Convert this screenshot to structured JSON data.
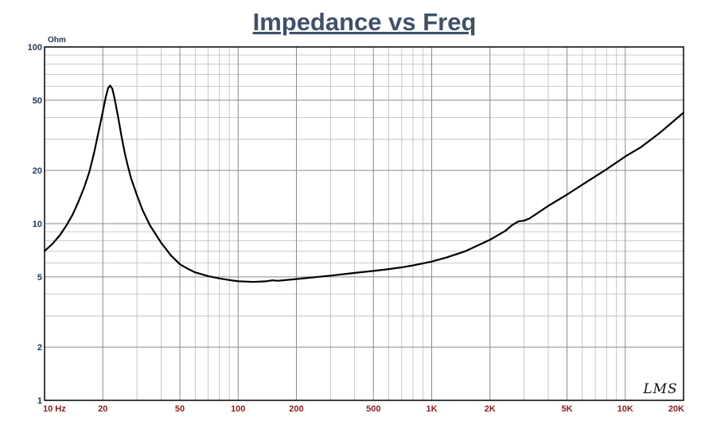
{
  "chart_data": {
    "type": "line",
    "title": "Impedance vs Freq",
    "yunit": "Ohm",
    "xscale": "log",
    "yscale": "log",
    "xlim": [
      10,
      20000
    ],
    "ylim": [
      1,
      100
    ],
    "grid": true,
    "legend": "none",
    "logo": "LMS",
    "xticks": [
      {
        "v": 10,
        "label": "10 Hz"
      },
      {
        "v": 20,
        "label": "20"
      },
      {
        "v": 50,
        "label": "50"
      },
      {
        "v": 100,
        "label": "100"
      },
      {
        "v": 200,
        "label": "200"
      },
      {
        "v": 500,
        "label": "500"
      },
      {
        "v": 1000,
        "label": "1K"
      },
      {
        "v": 2000,
        "label": "2K"
      },
      {
        "v": 5000,
        "label": "5K"
      },
      {
        "v": 10000,
        "label": "10K"
      },
      {
        "v": 20000,
        "label": "20K"
      }
    ],
    "yticks": [
      {
        "v": 1,
        "label": "1"
      },
      {
        "v": 2,
        "label": "2"
      },
      {
        "v": 5,
        "label": "5"
      },
      {
        "v": 10,
        "label": "10"
      },
      {
        "v": 20,
        "label": "20"
      },
      {
        "v": 50,
        "label": "50"
      },
      {
        "v": 100,
        "label": "100"
      }
    ],
    "series": [
      {
        "color": "#000000",
        "points": [
          [
            10,
            7.0
          ],
          [
            11,
            7.7
          ],
          [
            12,
            8.6
          ],
          [
            13,
            9.8
          ],
          [
            14,
            11.3
          ],
          [
            15,
            13.4
          ],
          [
            16,
            16.0
          ],
          [
            17,
            19.5
          ],
          [
            18,
            25.0
          ],
          [
            19,
            33.0
          ],
          [
            20,
            43.0
          ],
          [
            20.7,
            52.0
          ],
          [
            21.3,
            58.5
          ],
          [
            21.8,
            60.5
          ],
          [
            22.4,
            58.0
          ],
          [
            23,
            51.0
          ],
          [
            24,
            40.0
          ],
          [
            25,
            31.0
          ],
          [
            26,
            25.0
          ],
          [
            27,
            21.0
          ],
          [
            28,
            18.0
          ],
          [
            30,
            14.5
          ],
          [
            32,
            12.0
          ],
          [
            35,
            9.8
          ],
          [
            40,
            7.8
          ],
          [
            45,
            6.6
          ],
          [
            50,
            5.9
          ],
          [
            55,
            5.55
          ],
          [
            60,
            5.3
          ],
          [
            70,
            5.05
          ],
          [
            80,
            4.9
          ],
          [
            90,
            4.8
          ],
          [
            100,
            4.72
          ],
          [
            120,
            4.68
          ],
          [
            140,
            4.72
          ],
          [
            150,
            4.78
          ],
          [
            160,
            4.75
          ],
          [
            200,
            4.86
          ],
          [
            300,
            5.08
          ],
          [
            400,
            5.26
          ],
          [
            500,
            5.4
          ],
          [
            600,
            5.53
          ],
          [
            700,
            5.66
          ],
          [
            800,
            5.8
          ],
          [
            1000,
            6.1
          ],
          [
            1200,
            6.45
          ],
          [
            1500,
            7.0
          ],
          [
            2000,
            8.1
          ],
          [
            2400,
            9.1
          ],
          [
            2600,
            9.8
          ],
          [
            2800,
            10.3
          ],
          [
            3000,
            10.4
          ],
          [
            3200,
            10.7
          ],
          [
            4000,
            12.6
          ],
          [
            5000,
            14.6
          ],
          [
            6000,
            16.6
          ],
          [
            7000,
            18.5
          ],
          [
            8000,
            20.3
          ],
          [
            10000,
            24.0
          ],
          [
            12000,
            27.0
          ],
          [
            15000,
            32.5
          ],
          [
            20000,
            42.5
          ]
        ]
      }
    ]
  }
}
